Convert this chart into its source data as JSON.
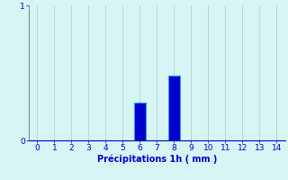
{
  "categories": [
    0,
    1,
    2,
    3,
    4,
    5,
    6,
    7,
    8,
    9,
    10,
    11,
    12,
    13,
    14
  ],
  "values": [
    0,
    0,
    0,
    0,
    0,
    0,
    0.28,
    0,
    0.48,
    0,
    0,
    0,
    0,
    0,
    0
  ],
  "bar_color": "#0000cc",
  "bar_edge_color": "#3399ff",
  "background_color": "#d8f5f5",
  "grid_color": "#aacccc",
  "text_color": "#0000cc",
  "xlabel": "Précipitations 1h ( mm )",
  "xlim": [
    -0.5,
    14.5
  ],
  "ylim": [
    0,
    1
  ],
  "yticks": [
    0,
    1
  ],
  "xticks": [
    0,
    1,
    2,
    3,
    4,
    5,
    6,
    7,
    8,
    9,
    10,
    11,
    12,
    13,
    14
  ],
  "axis_fontsize": 7,
  "tick_fontsize": 6.5,
  "bar_width": 0.7
}
